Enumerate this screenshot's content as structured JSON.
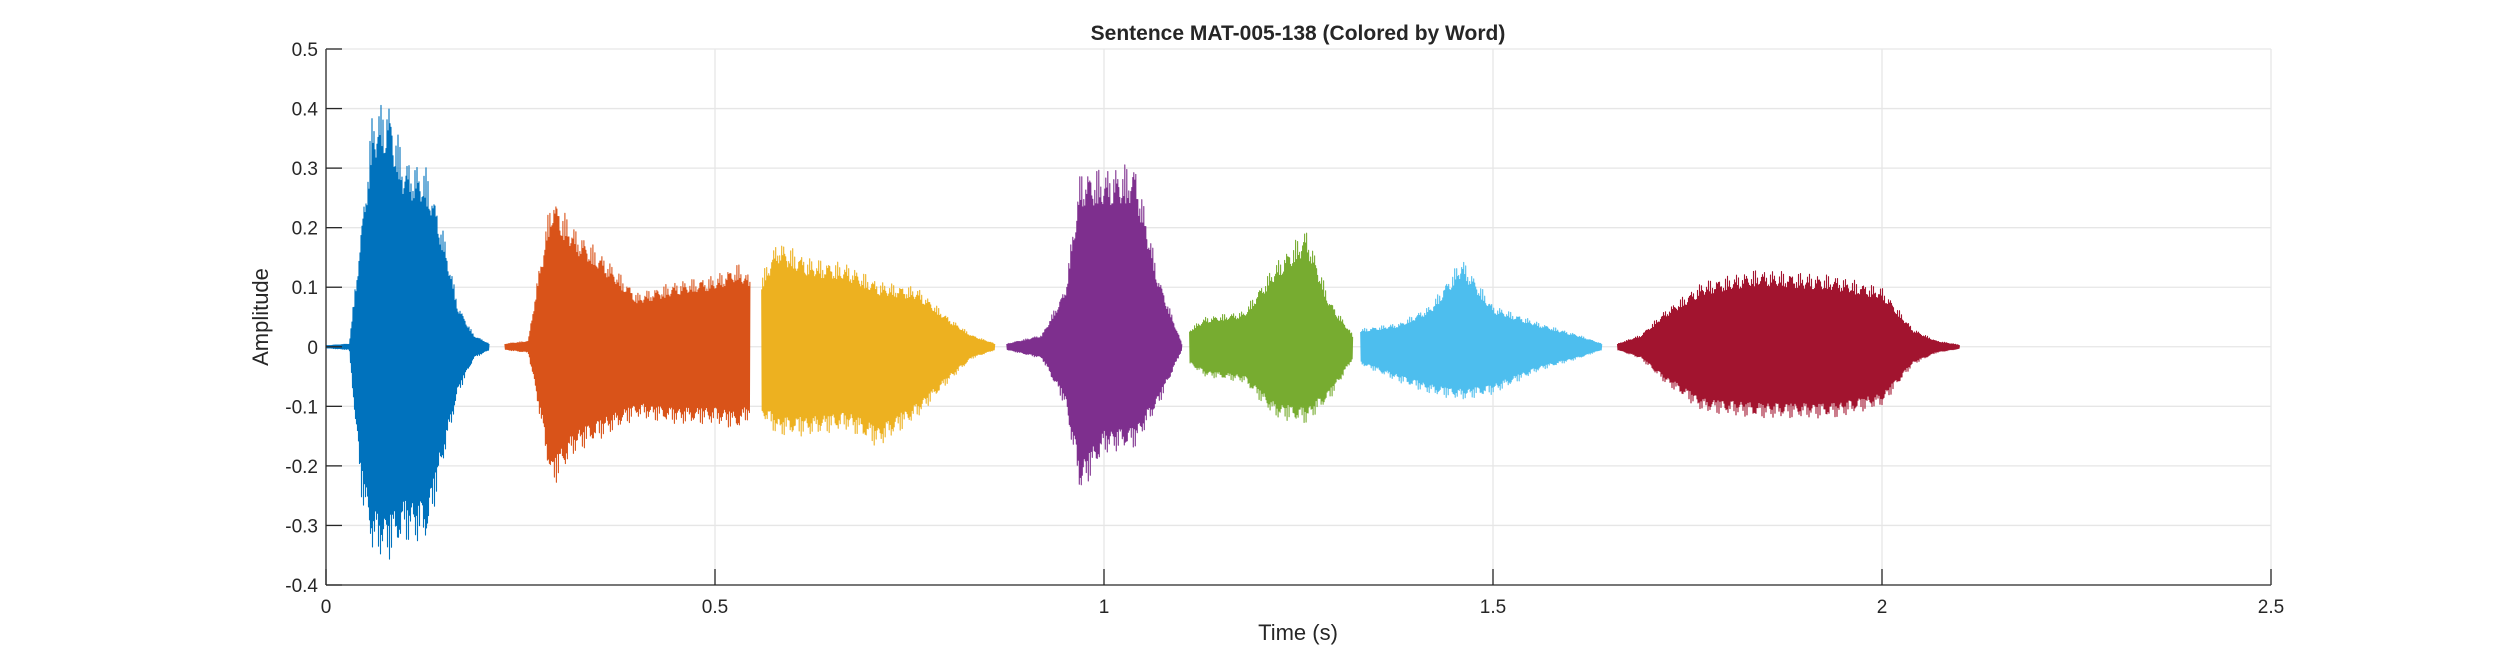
{
  "chart_data": {
    "type": "line",
    "title": "Sentence MAT-005-138 (Colored by Word)",
    "xlabel": "Time (s)",
    "ylabel": "Amplitude",
    "xlim": [
      0,
      2.5
    ],
    "ylim": [
      -0.4,
      0.5
    ],
    "xticks": [
      0,
      0.5,
      1,
      1.5,
      2,
      2.5
    ],
    "xtick_labels": [
      "0",
      "0.5",
      "1",
      "1.5",
      "2",
      "2.5"
    ],
    "yticks": [
      -0.4,
      -0.3,
      -0.2,
      -0.1,
      0,
      0.1,
      0.2,
      0.3,
      0.4,
      0.5
    ],
    "ytick_labels": [
      "-0.4",
      "-0.3",
      "-0.2",
      "-0.1",
      "0",
      "0.1",
      "0.2",
      "0.3",
      "0.4",
      "0.5"
    ],
    "grid": true,
    "series": [
      {
        "color": "#0072BD",
        "start": 0.0,
        "end": 0.21,
        "envelope": [
          [
            0.0,
            0.002,
            0.002
          ],
          [
            0.03,
            0.005,
            0.005
          ],
          [
            0.045,
            0.2,
            0.25
          ],
          [
            0.06,
            0.4,
            0.35
          ],
          [
            0.08,
            0.42,
            0.36
          ],
          [
            0.1,
            0.32,
            0.33
          ],
          [
            0.13,
            0.3,
            0.33
          ],
          [
            0.15,
            0.2,
            0.2
          ],
          [
            0.17,
            0.07,
            0.08
          ],
          [
            0.19,
            0.02,
            0.02
          ],
          [
            0.21,
            0.005,
            0.005
          ]
        ]
      },
      {
        "color": "#D95319",
        "start": 0.23,
        "end": 0.545,
        "envelope": [
          [
            0.23,
            0.005,
            0.005
          ],
          [
            0.26,
            0.01,
            0.01
          ],
          [
            0.27,
            0.1,
            0.08
          ],
          [
            0.29,
            0.26,
            0.24
          ],
          [
            0.32,
            0.2,
            0.18
          ],
          [
            0.36,
            0.15,
            0.15
          ],
          [
            0.4,
            0.09,
            0.12
          ],
          [
            0.45,
            0.11,
            0.13
          ],
          [
            0.5,
            0.12,
            0.13
          ],
          [
            0.53,
            0.14,
            0.14
          ],
          [
            0.545,
            0.12,
            0.12
          ]
        ]
      },
      {
        "color": "#EDB120",
        "start": 0.56,
        "end": 0.86,
        "envelope": [
          [
            0.56,
            0.12,
            0.12
          ],
          [
            0.58,
            0.18,
            0.15
          ],
          [
            0.62,
            0.15,
            0.15
          ],
          [
            0.67,
            0.14,
            0.14
          ],
          [
            0.71,
            0.11,
            0.17
          ],
          [
            0.76,
            0.1,
            0.12
          ],
          [
            0.8,
            0.05,
            0.06
          ],
          [
            0.83,
            0.02,
            0.02
          ],
          [
            0.86,
            0.005,
            0.005
          ]
        ]
      },
      {
        "color": "#7E2F8E",
        "start": 0.875,
        "end": 1.1,
        "envelope": [
          [
            0.875,
            0.005,
            0.005
          ],
          [
            0.92,
            0.02,
            0.02
          ],
          [
            0.95,
            0.1,
            0.1
          ],
          [
            0.97,
            0.3,
            0.25
          ],
          [
            1.0,
            0.3,
            0.18
          ],
          [
            1.04,
            0.31,
            0.17
          ],
          [
            1.07,
            0.12,
            0.1
          ],
          [
            1.1,
            0.005,
            0.005
          ]
        ]
      },
      {
        "color": "#77AC30",
        "start": 1.11,
        "end": 1.32,
        "envelope": [
          [
            1.11,
            0.03,
            0.03
          ],
          [
            1.13,
            0.05,
            0.05
          ],
          [
            1.18,
            0.06,
            0.06
          ],
          [
            1.22,
            0.14,
            0.12
          ],
          [
            1.26,
            0.2,
            0.13
          ],
          [
            1.29,
            0.08,
            0.09
          ],
          [
            1.32,
            0.02,
            0.02
          ]
        ]
      },
      {
        "color": "#4DBEEE",
        "start": 1.33,
        "end": 1.64,
        "envelope": [
          [
            1.33,
            0.03,
            0.03
          ],
          [
            1.38,
            0.04,
            0.06
          ],
          [
            1.42,
            0.07,
            0.08
          ],
          [
            1.46,
            0.15,
            0.09
          ],
          [
            1.5,
            0.07,
            0.08
          ],
          [
            1.56,
            0.04,
            0.04
          ],
          [
            1.61,
            0.02,
            0.02
          ],
          [
            1.64,
            0.005,
            0.005
          ]
        ]
      },
      {
        "color": "#A2142F",
        "start": 1.66,
        "end": 2.1,
        "envelope": [
          [
            1.66,
            0.005,
            0.005
          ],
          [
            1.69,
            0.02,
            0.02
          ],
          [
            1.72,
            0.06,
            0.06
          ],
          [
            1.77,
            0.11,
            0.11
          ],
          [
            1.84,
            0.13,
            0.12
          ],
          [
            1.94,
            0.12,
            0.12
          ],
          [
            2.0,
            0.1,
            0.1
          ],
          [
            2.04,
            0.03,
            0.03
          ],
          [
            2.07,
            0.01,
            0.01
          ],
          [
            2.1,
            0.003,
            0.003
          ]
        ]
      }
    ]
  }
}
